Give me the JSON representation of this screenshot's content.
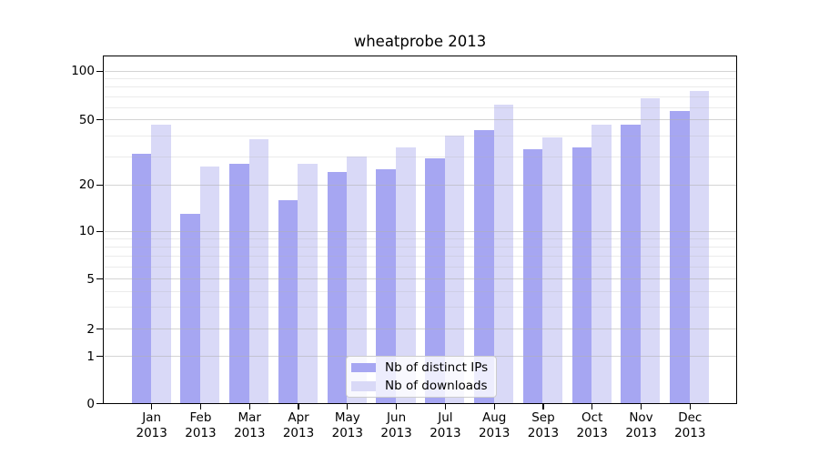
{
  "title": "wheatprobe 2013",
  "chart_data": {
    "type": "bar",
    "title": "wheatprobe 2013",
    "categories": [
      {
        "month": "Jan",
        "year": "2013"
      },
      {
        "month": "Feb",
        "year": "2013"
      },
      {
        "month": "Mar",
        "year": "2013"
      },
      {
        "month": "Apr",
        "year": "2013"
      },
      {
        "month": "May",
        "year": "2013"
      },
      {
        "month": "Jun",
        "year": "2013"
      },
      {
        "month": "Jul",
        "year": "2013"
      },
      {
        "month": "Aug",
        "year": "2013"
      },
      {
        "month": "Sep",
        "year": "2013"
      },
      {
        "month": "Oct",
        "year": "2013"
      },
      {
        "month": "Nov",
        "year": "2013"
      },
      {
        "month": "Dec",
        "year": "2013"
      }
    ],
    "series": [
      {
        "name": "Nb of distinct IPs",
        "color": "#a6a6f2",
        "values": [
          31,
          13,
          27,
          16,
          24,
          25,
          29,
          43,
          33,
          34,
          47,
          57
        ]
      },
      {
        "name": "Nb of downloads",
        "color": "#d9d9f7",
        "values": [
          47,
          26,
          38,
          27,
          30,
          34,
          40,
          62,
          39,
          47,
          68,
          75
        ]
      }
    ],
    "xlabel": "",
    "ylabel": "",
    "yscale": "symlog",
    "yticks": [
      0,
      1,
      2,
      5,
      10,
      20,
      50,
      100
    ],
    "minor_gridlines": [
      3,
      4,
      6,
      7,
      8,
      9,
      30,
      40,
      60,
      70,
      80,
      90
    ],
    "ylim": [
      0,
      125
    ],
    "grid": true,
    "legend_position": "lower center"
  }
}
